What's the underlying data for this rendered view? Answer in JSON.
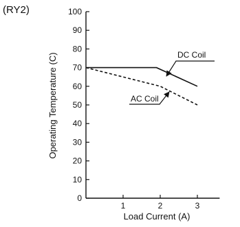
{
  "figure": {
    "corner_label": "(RY2)"
  },
  "chart_data": {
    "type": "line",
    "title": "",
    "xlabel": "Load Current (A)",
    "ylabel": "Operating Temperature (C)",
    "xlim": [
      0,
      3.6
    ],
    "ylim": [
      0,
      100
    ],
    "xticks": [
      1,
      2,
      3
    ],
    "yticks": [
      0,
      10,
      20,
      30,
      40,
      50,
      60,
      70,
      80,
      90,
      100
    ],
    "grid": false,
    "series": [
      {
        "name": "DC Coil",
        "style": "solid",
        "color": "#111111",
        "x": [
          0,
          1.9,
          3.0
        ],
        "y": [
          70,
          70,
          60
        ]
      },
      {
        "name": "AC Coil",
        "style": "dashed",
        "color": "#111111",
        "x": [
          0,
          2.0,
          3.0
        ],
        "y": [
          70,
          60,
          50
        ]
      }
    ],
    "annotations": [
      {
        "text": "DC Coil",
        "series": "DC Coil"
      },
      {
        "text": "AC Coil",
        "series": "AC Coil"
      }
    ]
  }
}
